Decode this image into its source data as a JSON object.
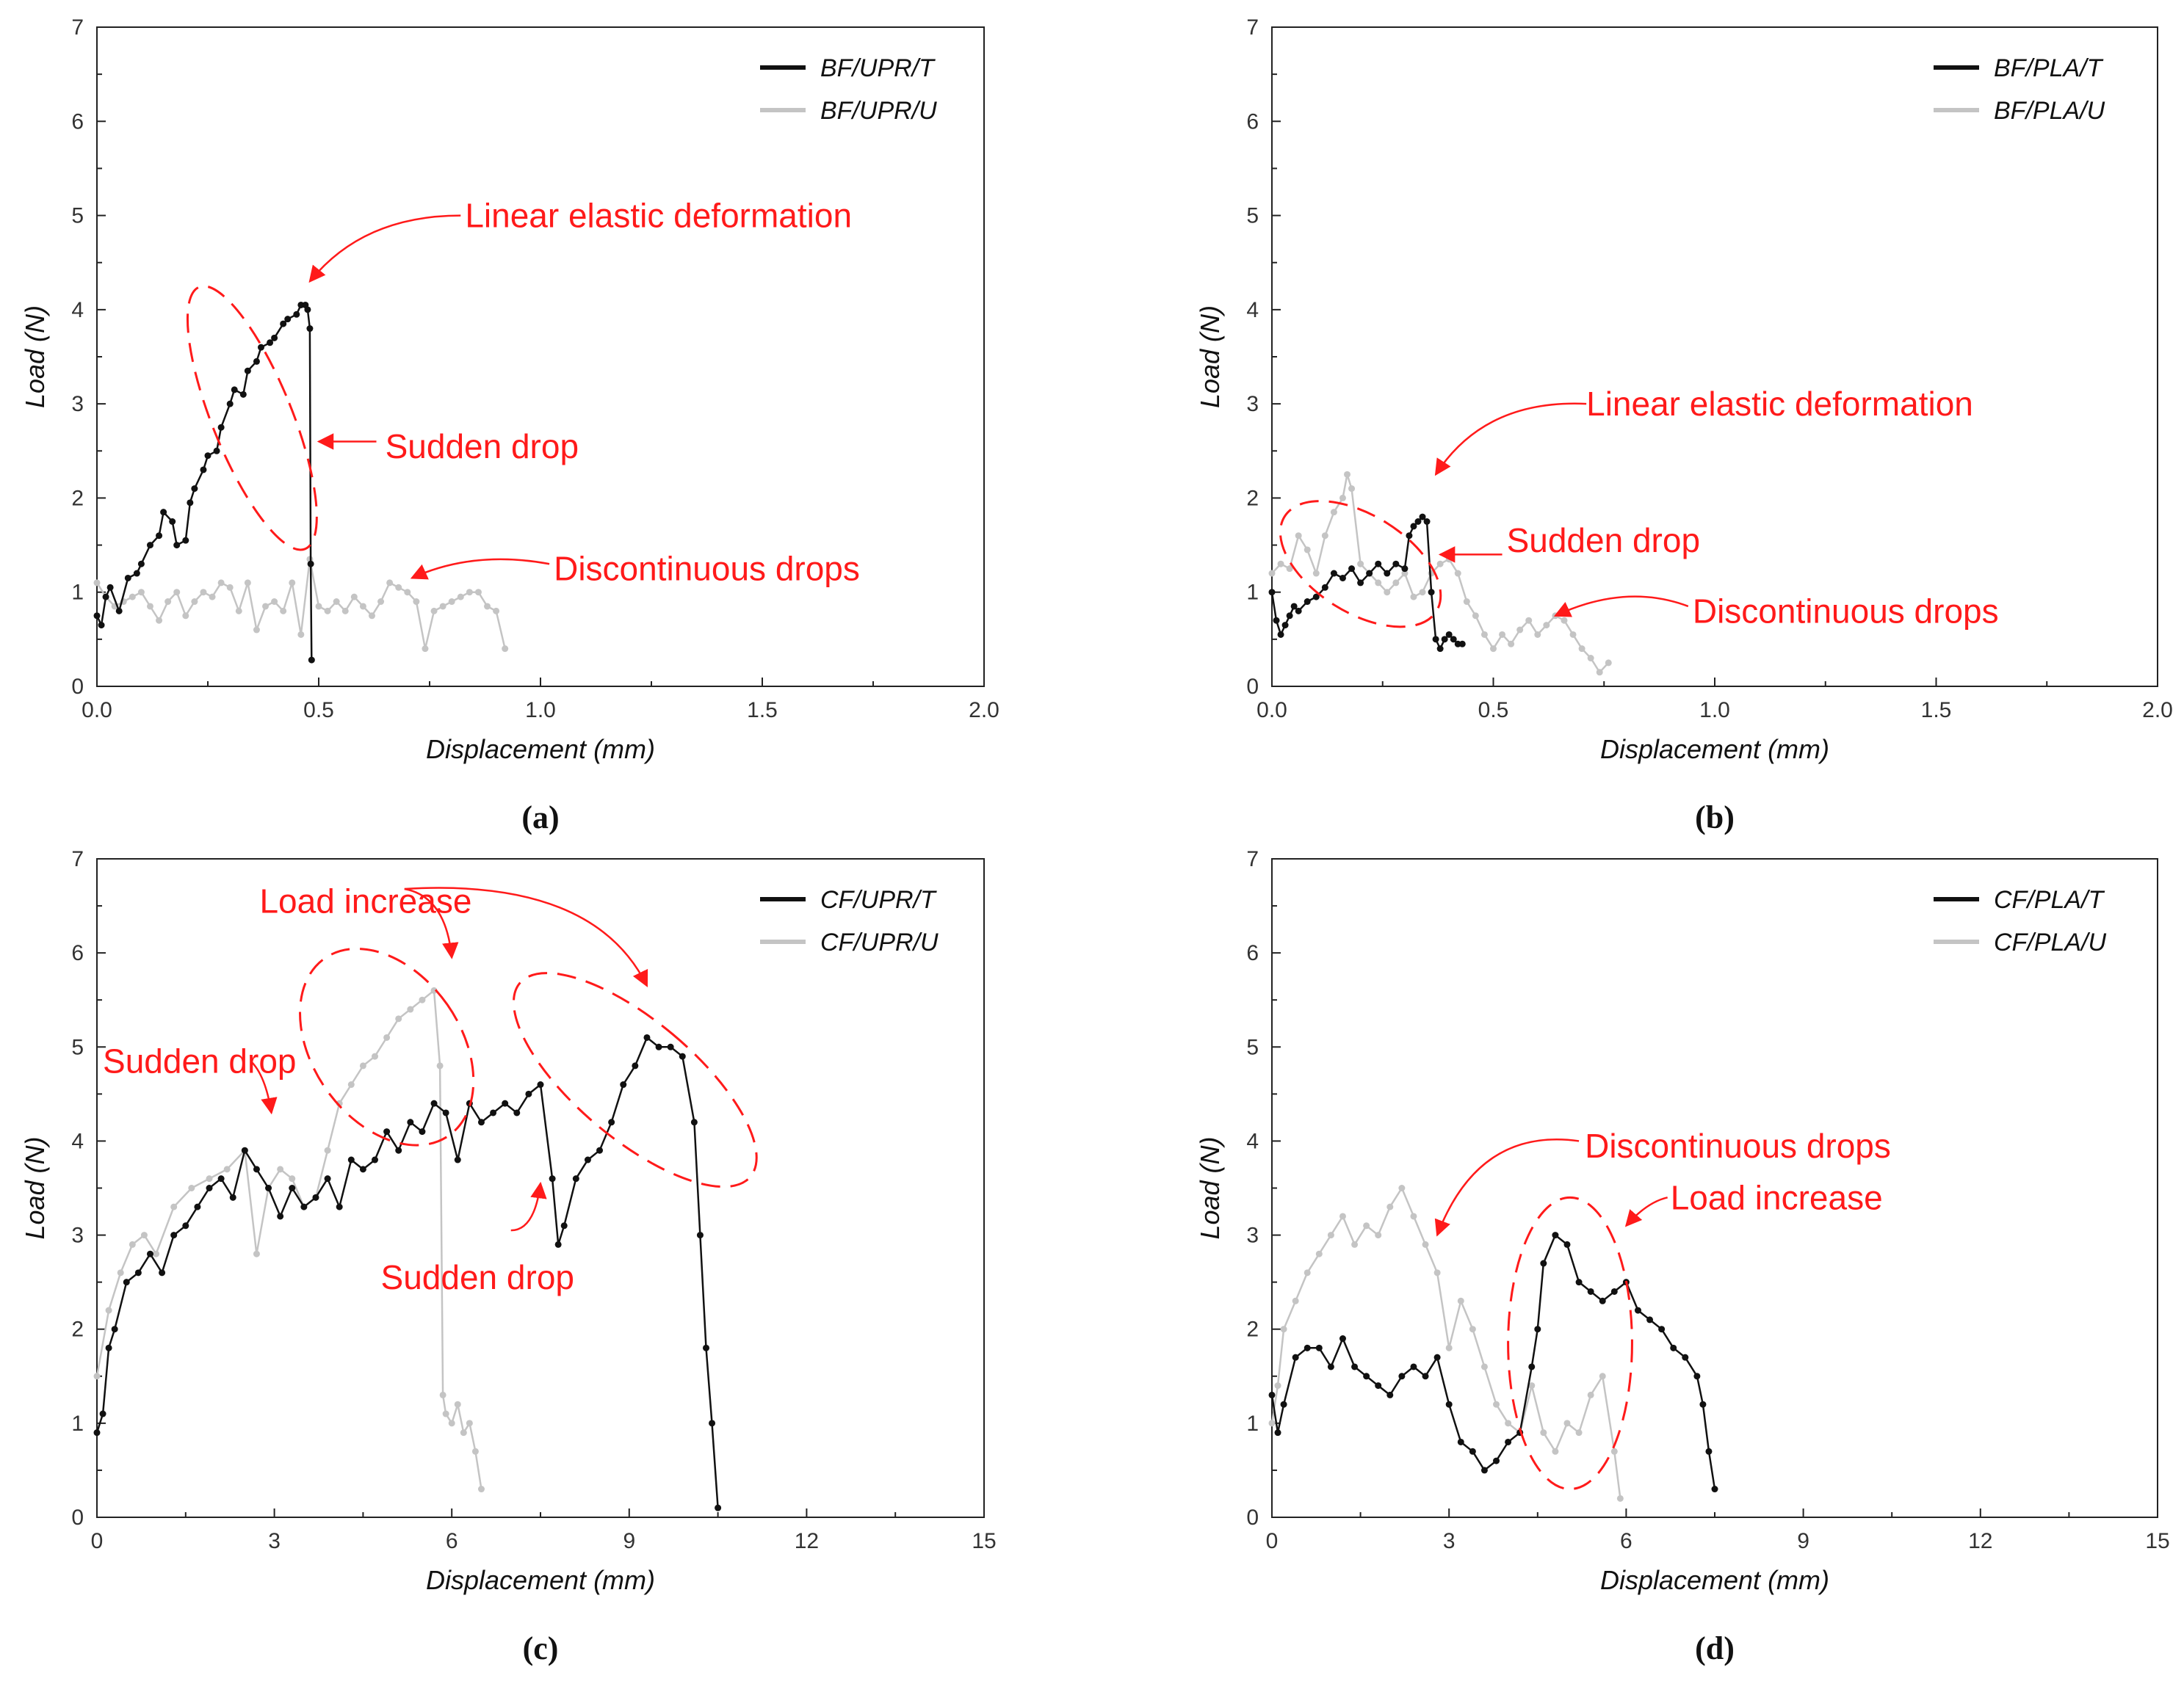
{
  "colors": {
    "series_t": "#111111",
    "series_u": "#c4c4c4",
    "annotation": "#ff1a1a",
    "axis": "#222222"
  },
  "chart_data": [
    {
      "id": "a",
      "panel_label": "(a)",
      "type": "line",
      "xlabel": "Displacement (mm)",
      "ylabel": "Load (N)",
      "xlim": [
        0,
        2.0
      ],
      "ylim": [
        0,
        7
      ],
      "xticks": [
        0,
        0.5,
        1.0,
        1.5,
        2.0
      ],
      "xtick_labels": [
        "0.0",
        "0.5",
        "1.0",
        "1.5",
        "2.0"
      ],
      "yticks": [
        0,
        1,
        2,
        3,
        4,
        5,
        6,
        7
      ],
      "ytick_labels": [
        "0",
        "1",
        "2",
        "3",
        "4",
        "5",
        "6",
        "7"
      ],
      "legend_position": "top-right",
      "grid": false,
      "series": [
        {
          "name": "BF/UPR/T",
          "color_key": "series_t",
          "x": [
            0,
            0.01,
            0.02,
            0.03,
            0.05,
            0.07,
            0.09,
            0.1,
            0.12,
            0.14,
            0.15,
            0.17,
            0.18,
            0.2,
            0.21,
            0.22,
            0.24,
            0.25,
            0.27,
            0.28,
            0.3,
            0.31,
            0.33,
            0.34,
            0.36,
            0.37,
            0.39,
            0.4,
            0.42,
            0.43,
            0.45,
            0.46,
            0.47,
            0.475,
            0.48,
            0.482,
            0.484
          ],
          "y": [
            0.75,
            0.65,
            0.95,
            1.05,
            0.8,
            1.15,
            1.2,
            1.3,
            1.5,
            1.6,
            1.85,
            1.75,
            1.5,
            1.55,
            1.95,
            2.1,
            2.3,
            2.45,
            2.5,
            2.75,
            3.0,
            3.15,
            3.1,
            3.35,
            3.45,
            3.6,
            3.65,
            3.7,
            3.85,
            3.9,
            3.95,
            4.05,
            4.05,
            4.0,
            3.8,
            1.3,
            0.28
          ]
        },
        {
          "name": "BF/UPR/U",
          "color_key": "series_u",
          "x": [
            0,
            0.02,
            0.04,
            0.06,
            0.08,
            0.1,
            0.12,
            0.14,
            0.16,
            0.18,
            0.2,
            0.22,
            0.24,
            0.26,
            0.28,
            0.3,
            0.32,
            0.34,
            0.36,
            0.38,
            0.4,
            0.42,
            0.44,
            0.46,
            0.48,
            0.5,
            0.52,
            0.54,
            0.56,
            0.58,
            0.6,
            0.62,
            0.64,
            0.66,
            0.68,
            0.7,
            0.72,
            0.74,
            0.76,
            0.78,
            0.8,
            0.82,
            0.84,
            0.86,
            0.88,
            0.9,
            0.92
          ],
          "y": [
            1.1,
            0.95,
            0.85,
            0.9,
            0.95,
            1.0,
            0.85,
            0.7,
            0.9,
            1.0,
            0.75,
            0.9,
            1.0,
            0.95,
            1.1,
            1.05,
            0.8,
            1.1,
            0.6,
            0.85,
            0.9,
            0.8,
            1.1,
            0.55,
            1.35,
            0.85,
            0.8,
            0.9,
            0.8,
            0.95,
            0.85,
            0.75,
            0.9,
            1.1,
            1.05,
            1.0,
            0.9,
            0.4,
            0.8,
            0.85,
            0.9,
            0.95,
            1.0,
            1.0,
            0.85,
            0.8,
            0.4
          ]
        }
      ],
      "annotations": [
        {
          "text": "Linear elastic deformation",
          "x": 0.83,
          "y": 5.0
        },
        {
          "text": "Sudden drop",
          "x": 0.65,
          "y": 2.55
        },
        {
          "text": "Discontinuous drops",
          "x": 1.03,
          "y": 1.25
        }
      ]
    },
    {
      "id": "b",
      "panel_label": "(b)",
      "type": "line",
      "xlabel": "Displacement (mm)",
      "ylabel": "Load (N)",
      "xlim": [
        0,
        2.0
      ],
      "ylim": [
        0,
        7
      ],
      "xticks": [
        0,
        0.5,
        1.0,
        1.5,
        2.0
      ],
      "xtick_labels": [
        "0.0",
        "0.5",
        "1.0",
        "1.5",
        "2.0"
      ],
      "yticks": [
        0,
        1,
        2,
        3,
        4,
        5,
        6,
        7
      ],
      "ytick_labels": [
        "0",
        "1",
        "2",
        "3",
        "4",
        "5",
        "6",
        "7"
      ],
      "legend_position": "top-right",
      "grid": false,
      "series": [
        {
          "name": "BF/PLA/T",
          "color_key": "series_t",
          "x": [
            0,
            0.01,
            0.02,
            0.03,
            0.04,
            0.05,
            0.06,
            0.08,
            0.1,
            0.12,
            0.14,
            0.16,
            0.18,
            0.2,
            0.22,
            0.24,
            0.26,
            0.28,
            0.3,
            0.31,
            0.32,
            0.33,
            0.34,
            0.35,
            0.36,
            0.37,
            0.38,
            0.39,
            0.4,
            0.41,
            0.42,
            0.43
          ],
          "y": [
            1.0,
            0.7,
            0.55,
            0.65,
            0.75,
            0.85,
            0.8,
            0.9,
            0.95,
            1.05,
            1.2,
            1.15,
            1.25,
            1.1,
            1.2,
            1.3,
            1.2,
            1.3,
            1.25,
            1.6,
            1.7,
            1.75,
            1.8,
            1.75,
            1.0,
            0.5,
            0.4,
            0.5,
            0.55,
            0.5,
            0.45,
            0.45
          ]
        },
        {
          "name": "BF/PLA/U",
          "color_key": "series_u",
          "x": [
            0,
            0.02,
            0.04,
            0.06,
            0.08,
            0.1,
            0.12,
            0.14,
            0.16,
            0.17,
            0.18,
            0.2,
            0.22,
            0.24,
            0.26,
            0.28,
            0.3,
            0.32,
            0.34,
            0.36,
            0.38,
            0.4,
            0.42,
            0.44,
            0.46,
            0.48,
            0.5,
            0.52,
            0.54,
            0.56,
            0.58,
            0.6,
            0.62,
            0.64,
            0.66,
            0.68,
            0.7,
            0.72,
            0.74,
            0.76
          ],
          "y": [
            1.2,
            1.3,
            1.25,
            1.6,
            1.45,
            1.2,
            1.6,
            1.85,
            2.0,
            2.25,
            2.1,
            1.3,
            1.2,
            1.1,
            1.0,
            1.1,
            1.2,
            0.95,
            1.0,
            1.2,
            1.3,
            1.35,
            1.2,
            0.9,
            0.75,
            0.55,
            0.4,
            0.55,
            0.45,
            0.6,
            0.7,
            0.55,
            0.65,
            0.75,
            0.7,
            0.55,
            0.4,
            0.3,
            0.15,
            0.25
          ]
        }
      ],
      "annotations": [
        {
          "text": "Linear elastic deformation",
          "x": 0.71,
          "y": 3.0
        },
        {
          "text": "Sudden drop",
          "x": 0.53,
          "y": 1.55
        },
        {
          "text": "Discontinuous drops",
          "x": 0.95,
          "y": 0.8
        }
      ]
    },
    {
      "id": "c",
      "panel_label": "(c)",
      "type": "line",
      "xlabel": "Displacement (mm)",
      "ylabel": "Load (N)",
      "xlim": [
        0,
        15
      ],
      "ylim": [
        0,
        7
      ],
      "xticks": [
        0,
        3,
        6,
        9,
        12,
        15
      ],
      "xtick_labels": [
        "0",
        "3",
        "6",
        "9",
        "12",
        "15"
      ],
      "yticks": [
        0,
        1,
        2,
        3,
        4,
        5,
        6,
        7
      ],
      "ytick_labels": [
        "0",
        "1",
        "2",
        "3",
        "4",
        "5",
        "6",
        "7"
      ],
      "legend_position": "top-right",
      "grid": false,
      "series": [
        {
          "name": "CF/UPR/T",
          "color_key": "series_t",
          "x": [
            0,
            0.1,
            0.2,
            0.3,
            0.5,
            0.7,
            0.9,
            1.1,
            1.3,
            1.5,
            1.7,
            1.9,
            2.1,
            2.3,
            2.5,
            2.7,
            2.9,
            3.1,
            3.3,
            3.5,
            3.7,
            3.9,
            4.1,
            4.3,
            4.5,
            4.7,
            4.9,
            5.1,
            5.3,
            5.5,
            5.7,
            5.9,
            6.1,
            6.3,
            6.5,
            6.7,
            6.9,
            7.1,
            7.3,
            7.5,
            7.7,
            7.8,
            7.9,
            8.1,
            8.3,
            8.5,
            8.7,
            8.9,
            9.1,
            9.3,
            9.5,
            9.7,
            9.9,
            10.1,
            10.2,
            10.3,
            10.4,
            10.5
          ],
          "y": [
            0.9,
            1.1,
            1.8,
            2.0,
            2.5,
            2.6,
            2.8,
            2.6,
            3.0,
            3.1,
            3.3,
            3.5,
            3.6,
            3.4,
            3.9,
            3.7,
            3.5,
            3.2,
            3.5,
            3.3,
            3.4,
            3.6,
            3.3,
            3.8,
            3.7,
            3.8,
            4.1,
            3.9,
            4.2,
            4.1,
            4.4,
            4.3,
            3.8,
            4.4,
            4.2,
            4.3,
            4.4,
            4.3,
            4.5,
            4.6,
            3.6,
            2.9,
            3.1,
            3.6,
            3.8,
            3.9,
            4.2,
            4.6,
            4.8,
            5.1,
            5.0,
            5.0,
            4.9,
            4.2,
            3.0,
            1.8,
            1.0,
            0.1
          ]
        },
        {
          "name": "CF/UPR/U",
          "color_key": "series_u",
          "x": [
            0,
            0.2,
            0.4,
            0.6,
            0.8,
            1.0,
            1.3,
            1.6,
            1.9,
            2.2,
            2.5,
            2.7,
            2.9,
            3.1,
            3.3,
            3.5,
            3.7,
            3.9,
            4.1,
            4.3,
            4.5,
            4.7,
            4.9,
            5.1,
            5.3,
            5.5,
            5.7,
            5.8,
            5.85,
            5.9,
            6.0,
            6.1,
            6.2,
            6.3,
            6.4,
            6.5
          ],
          "y": [
            1.5,
            2.2,
            2.6,
            2.9,
            3.0,
            2.8,
            3.3,
            3.5,
            3.6,
            3.7,
            3.9,
            2.8,
            3.5,
            3.7,
            3.6,
            3.3,
            3.4,
            3.9,
            4.4,
            4.6,
            4.8,
            4.9,
            5.1,
            5.3,
            5.4,
            5.5,
            5.6,
            4.8,
            1.3,
            1.1,
            1.0,
            1.2,
            0.9,
            1.0,
            0.7,
            0.3
          ]
        }
      ],
      "annotations": [
        {
          "text": "Load increase",
          "x": 2.75,
          "y": 6.55
        },
        {
          "text": "Sudden drop",
          "x": 0.1,
          "y": 4.85
        },
        {
          "text": "Sudden drop",
          "x": 4.8,
          "y": 2.55
        }
      ]
    },
    {
      "id": "d",
      "panel_label": "(d)",
      "type": "line",
      "xlabel": "Displacement (mm)",
      "ylabel": "Load (N)",
      "xlim": [
        0,
        15
      ],
      "ylim": [
        0,
        7
      ],
      "xticks": [
        0,
        3,
        6,
        9,
        12,
        15
      ],
      "xtick_labels": [
        "0",
        "3",
        "6",
        "9",
        "12",
        "15"
      ],
      "yticks": [
        0,
        1,
        2,
        3,
        4,
        5,
        6,
        7
      ],
      "ytick_labels": [
        "0",
        "1",
        "2",
        "3",
        "4",
        "5",
        "6",
        "7"
      ],
      "legend_position": "top-right",
      "grid": false,
      "series": [
        {
          "name": "CF/PLA/T",
          "color_key": "series_t",
          "x": [
            0,
            0.1,
            0.2,
            0.4,
            0.6,
            0.8,
            1.0,
            1.2,
            1.4,
            1.6,
            1.8,
            2.0,
            2.2,
            2.4,
            2.6,
            2.8,
            3.0,
            3.2,
            3.4,
            3.6,
            3.8,
            4.0,
            4.2,
            4.4,
            4.5,
            4.6,
            4.8,
            5.0,
            5.2,
            5.4,
            5.6,
            5.8,
            6.0,
            6.2,
            6.4,
            6.6,
            6.8,
            7.0,
            7.2,
            7.3,
            7.4,
            7.5
          ],
          "y": [
            1.3,
            0.9,
            1.2,
            1.7,
            1.8,
            1.8,
            1.6,
            1.9,
            1.6,
            1.5,
            1.4,
            1.3,
            1.5,
            1.6,
            1.5,
            1.7,
            1.2,
            0.8,
            0.7,
            0.5,
            0.6,
            0.8,
            0.9,
            1.6,
            2.0,
            2.7,
            3.0,
            2.9,
            2.5,
            2.4,
            2.3,
            2.4,
            2.5,
            2.2,
            2.1,
            2.0,
            1.8,
            1.7,
            1.5,
            1.2,
            0.7,
            0.3
          ]
        },
        {
          "name": "CF/PLA/U",
          "color_key": "series_u",
          "x": [
            0,
            0.1,
            0.2,
            0.4,
            0.6,
            0.8,
            1.0,
            1.2,
            1.4,
            1.6,
            1.8,
            2.0,
            2.2,
            2.4,
            2.6,
            2.8,
            3.0,
            3.2,
            3.4,
            3.6,
            3.8,
            4.0,
            4.2,
            4.4,
            4.6,
            4.8,
            5.0,
            5.2,
            5.4,
            5.6,
            5.8,
            5.9
          ],
          "y": [
            1.0,
            1.4,
            2.0,
            2.3,
            2.6,
            2.8,
            3.0,
            3.2,
            2.9,
            3.1,
            3.0,
            3.3,
            3.5,
            3.2,
            2.9,
            2.6,
            1.8,
            2.3,
            2.0,
            1.6,
            1.2,
            1.0,
            0.9,
            1.4,
            0.9,
            0.7,
            1.0,
            0.9,
            1.3,
            1.5,
            0.7,
            0.2
          ]
        }
      ],
      "annotations": [
        {
          "text": "Discontinuous drops",
          "x": 5.3,
          "y": 3.95
        },
        {
          "text": "Load increase",
          "x": 6.75,
          "y": 3.4
        }
      ]
    }
  ]
}
